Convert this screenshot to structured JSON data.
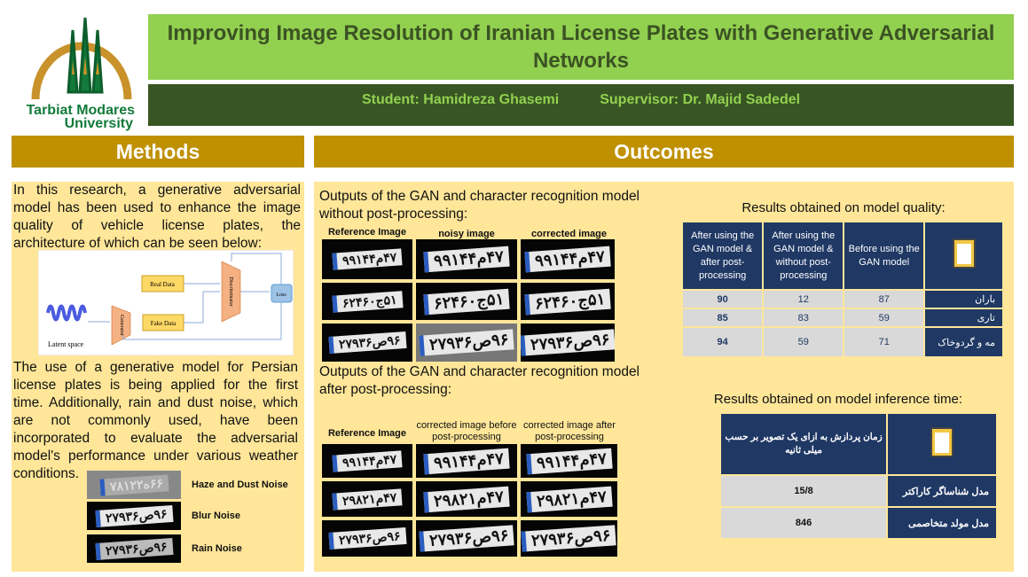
{
  "logo": {
    "name_line1": "Tarbiat Modares",
    "name_line2": "University"
  },
  "title": "Improving Image Resolution of Iranian License Plates with Generative Adversarial Networks",
  "student": "Student: Hamidreza Ghasemi",
  "supervisor": "Supervisor: Dr. Majid Sadedel",
  "methods": {
    "heading": "Methods",
    "intro": "In this research, a generative adversarial model has been used to enhance the image quality of vehicle license plates, the architecture of which can be seen below:",
    "diagram": {
      "latent": "Latent space",
      "generator": "Generator",
      "real": "Real Data",
      "fake": "Fake Data",
      "discriminator": "Discriminator",
      "loss": "Loss"
    },
    "body": "The use of a generative model for Persian license plates is being applied for the first time. Additionally, rain and dust noise, which are not commonly used, have been incorporated to evaluate the adversarial model's performance under various weather conditions.",
    "noise": [
      {
        "label": "Haze and Dust Noise",
        "plate": "۶۶ه۷۸۱۲۲"
      },
      {
        "label": "Blur Noise",
        "plate": "۹۶ص۲۷۹۳۶"
      },
      {
        "label": "Rain Noise",
        "plate": "۹۶ص۲۷۹۳۶"
      }
    ]
  },
  "outcomes": {
    "heading": "Outcomes",
    "caption1": "Outputs of the GAN and character recognition model without post-processing:",
    "grid1_cols": [
      "Reference Image",
      "noisy image",
      "corrected image"
    ],
    "caption2": "Outputs of the GAN and character recognition model after post-processing:",
    "grid2_cols": [
      "Reference Image",
      "corrected image before post-processing",
      "corrected image after post-processing"
    ],
    "plates": [
      "۴۷م۹۹۱۴۴",
      "۵۱ج۶۲۴۶۰",
      "۹۶ص۲۷۹۳۶"
    ],
    "plates2": [
      "۴۷م۹۹۱۴۴",
      "۴۷م۲۹۸۲۱",
      "۹۶ص۲۷۹۳۶"
    ],
    "quality": {
      "title": "Results obtained on model quality:",
      "headers": [
        "After using the GAN model & after post-processing",
        "After using the GAN model & without post-processing",
        "Before using the GAN model"
      ],
      "rows": [
        {
          "label": "باران",
          "values": [
            "90",
            "12",
            "87"
          ]
        },
        {
          "label": "تاری",
          "values": [
            "85",
            "83",
            "59"
          ]
        },
        {
          "label": "مه و گردوخاک",
          "values": [
            "94",
            "59",
            "71"
          ]
        }
      ]
    },
    "time": {
      "title": "Results obtained on model inference time:",
      "header": "زمان پردازش به ازای یک تصویر بر حسب میلی ثانیه",
      "rows": [
        {
          "label": "مدل شناساگر کاراکتر",
          "value": "15/8"
        },
        {
          "label": "مدل مولد متخاصمی",
          "value": "846"
        }
      ]
    }
  },
  "colors": {
    "title_bg": "#92d050",
    "subtitle_bg": "#375623",
    "section_header": "#bf9000",
    "panel": "#ffe699",
    "table_header": "#1f3864"
  }
}
